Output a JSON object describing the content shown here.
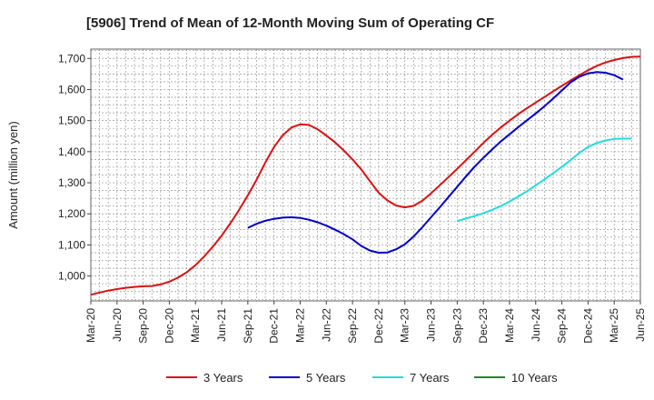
{
  "chart_data": {
    "type": "line",
    "title": "[5906]  Trend of Mean of 12-Month Moving Sum of Operating CF",
    "xlabel": "",
    "ylabel": "Amount (million yen)",
    "ylim": [
      920,
      1730
    ],
    "yticks": [
      1000,
      1100,
      1200,
      1300,
      1400,
      1500,
      1600,
      1700
    ],
    "ytick_labels": [
      "1,000",
      "1,100",
      "1,200",
      "1,300",
      "1,400",
      "1,500",
      "1,600",
      "1,700"
    ],
    "x_start": "Mar-20",
    "x_count": 64,
    "xtick_labels": [
      "Mar-20",
      "Jun-20",
      "Sep-20",
      "Dec-20",
      "Mar-21",
      "Jun-21",
      "Sep-21",
      "Dec-21",
      "Mar-22",
      "Jun-22",
      "Sep-22",
      "Dec-22",
      "Mar-23",
      "Jun-23",
      "Sep-23",
      "Dec-23",
      "Mar-24",
      "Jun-24",
      "Sep-24",
      "Dec-24",
      "Mar-25",
      "Jun-25"
    ],
    "grid": true,
    "legend_position": "bottom",
    "series": [
      {
        "name": "3 Years",
        "color": "#dd1111",
        "start_index": 0,
        "values": [
          940,
          947,
          953,
          958,
          962,
          965,
          967,
          968,
          973,
          982,
          995,
          1012,
          1035,
          1063,
          1095,
          1130,
          1170,
          1213,
          1260,
          1310,
          1365,
          1415,
          1453,
          1478,
          1488,
          1486,
          1472,
          1452,
          1430,
          1404,
          1375,
          1343,
          1305,
          1268,
          1243,
          1227,
          1221,
          1226,
          1242,
          1266,
          1292,
          1318,
          1345,
          1372,
          1400,
          1428,
          1454,
          1478,
          1500,
          1521,
          1540,
          1558,
          1576,
          1594,
          1612,
          1629,
          1646,
          1662,
          1676,
          1687,
          1695,
          1701,
          1705,
          1706
        ]
      },
      {
        "name": "5 Years",
        "color": "#0000cc",
        "start_index": 18,
        "values": [
          1155,
          1168,
          1178,
          1184,
          1188,
          1189,
          1187,
          1181,
          1173,
          1162,
          1149,
          1135,
          1118,
          1097,
          1082,
          1075,
          1076,
          1086,
          1102,
          1127,
          1157,
          1189,
          1221,
          1254,
          1287,
          1320,
          1352,
          1380,
          1407,
          1433,
          1456,
          1479,
          1501,
          1523,
          1546,
          1571,
          1597,
          1623,
          1641,
          1652,
          1656,
          1654,
          1646,
          1632
        ]
      },
      {
        "name": "7 Years",
        "color": "#22dddd",
        "start_index": 42,
        "values": [
          1177,
          1185,
          1193,
          1202,
          1213,
          1225,
          1240,
          1256,
          1273,
          1292,
          1311,
          1331,
          1351,
          1373,
          1396,
          1415,
          1428,
          1436,
          1441,
          1442,
          1442
        ]
      },
      {
        "name": "10 Years",
        "color": "#228822",
        "start_index": 0,
        "values": []
      }
    ]
  }
}
